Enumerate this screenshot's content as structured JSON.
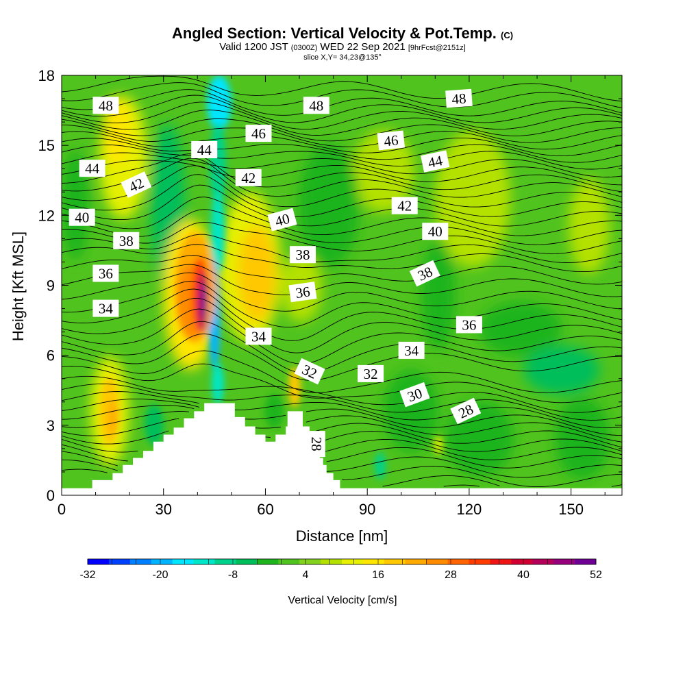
{
  "header": {
    "title": "Angled Section: Vertical Velocity & Pot.Temp.",
    "title_unit": "(C)",
    "valid_prefix": "Valid 1200 JST",
    "valid_utc": "(0300Z)",
    "valid_date": "WED 22 Sep 2021",
    "forecast": "[9hrFcst@2151z]",
    "slice": "slice X,Y= 34,23@135°"
  },
  "chart_data": {
    "type": "heatmap",
    "xlabel": "Distance [nm]",
    "ylabel": "Height [Kft MSL]",
    "xlim": [
      0,
      165
    ],
    "ylim": [
      0,
      18
    ],
    "xticks": [
      0,
      30,
      60,
      90,
      120,
      150
    ],
    "yticks": [
      0,
      3,
      6,
      9,
      12,
      15,
      18
    ],
    "colorbar": {
      "label": "Vertical Velocity [cm/s]",
      "min": -32,
      "max": 52,
      "step": 4,
      "tick_labels": [
        -32,
        -20,
        -8,
        4,
        16,
        28,
        40,
        52
      ],
      "colors": [
        "#0000ff",
        "#0040ff",
        "#0080ff",
        "#00b4ff",
        "#00e6ff",
        "#00e6c8",
        "#00d28c",
        "#00be5a",
        "#1eb41e",
        "#50c31e",
        "#82d21e",
        "#b4e100",
        "#e6f000",
        "#ffe600",
        "#ffc800",
        "#ffaa00",
        "#ff8c00",
        "#ff6400",
        "#ff3c00",
        "#f01414",
        "#d20032",
        "#b4005a",
        "#96007d",
        "#6e0096"
      ]
    },
    "terrain_kft": [
      [
        0,
        0.3
      ],
      [
        9,
        0.3
      ],
      [
        9,
        0.65
      ],
      [
        15,
        0.65
      ],
      [
        15,
        0.95
      ],
      [
        18,
        0.95
      ],
      [
        18,
        1.3
      ],
      [
        21,
        1.3
      ],
      [
        21,
        1.6
      ],
      [
        24,
        1.6
      ],
      [
        24,
        1.9
      ],
      [
        27,
        1.9
      ],
      [
        27,
        2.3
      ],
      [
        30,
        2.3
      ],
      [
        30,
        2.6
      ],
      [
        33,
        2.6
      ],
      [
        33,
        2.9
      ],
      [
        36,
        2.9
      ],
      [
        36,
        3.3
      ],
      [
        39,
        3.3
      ],
      [
        39,
        3.6
      ],
      [
        42,
        3.6
      ],
      [
        42,
        3.95
      ],
      [
        51,
        3.95
      ],
      [
        51,
        3.35
      ],
      [
        54,
        3.35
      ],
      [
        54,
        2.95
      ],
      [
        57,
        2.95
      ],
      [
        57,
        2.6
      ],
      [
        60,
        2.6
      ],
      [
        60,
        2.3
      ],
      [
        63,
        2.3
      ],
      [
        63,
        2.6
      ],
      [
        66,
        2.6
      ],
      [
        66,
        2.95
      ],
      [
        66.5,
        2.95
      ],
      [
        66.5,
        3.6
      ],
      [
        71,
        3.6
      ],
      [
        71,
        2.95
      ],
      [
        73,
        2.95
      ],
      [
        73,
        2.6
      ],
      [
        74,
        2.6
      ],
      [
        74,
        2.3
      ],
      [
        75,
        2.3
      ],
      [
        75,
        1.95
      ],
      [
        76,
        1.95
      ],
      [
        76,
        1.6
      ],
      [
        77,
        1.6
      ],
      [
        77,
        1.3
      ],
      [
        78,
        1.3
      ],
      [
        78,
        0.95
      ],
      [
        80,
        0.95
      ],
      [
        80,
        0.65
      ],
      [
        82,
        0.65
      ],
      [
        82,
        0.3
      ],
      [
        165,
        0.3
      ]
    ],
    "isentropes_C": [
      28,
      30,
      32,
      34,
      36,
      38,
      40,
      42,
      44,
      46,
      48
    ],
    "contour_labels": [
      {
        "text": "48",
        "x": 13,
        "y": 16.7,
        "angle": 0
      },
      {
        "text": "48",
        "x": 75,
        "y": 16.7,
        "angle": 0
      },
      {
        "text": "48",
        "x": 117,
        "y": 17.0,
        "angle": -4
      },
      {
        "text": "46",
        "x": 58,
        "y": 15.5,
        "angle": 0
      },
      {
        "text": "46",
        "x": 97,
        "y": 15.2,
        "angle": -6
      },
      {
        "text": "44",
        "x": 42,
        "y": 14.8,
        "angle": 0
      },
      {
        "text": "44",
        "x": 9,
        "y": 14.0,
        "angle": 0
      },
      {
        "text": "44",
        "x": 110,
        "y": 14.3,
        "angle": -12
      },
      {
        "text": "42",
        "x": 22,
        "y": 13.3,
        "angle": -25
      },
      {
        "text": "42",
        "x": 55,
        "y": 13.6,
        "angle": 0
      },
      {
        "text": "42",
        "x": 101,
        "y": 12.4,
        "angle": 0
      },
      {
        "text": "40",
        "x": 6,
        "y": 11.9,
        "angle": 0
      },
      {
        "text": "40",
        "x": 65,
        "y": 11.8,
        "angle": -15
      },
      {
        "text": "40",
        "x": 110,
        "y": 11.3,
        "angle": 0
      },
      {
        "text": "38",
        "x": 19,
        "y": 10.9,
        "angle": 0
      },
      {
        "text": "38",
        "x": 71,
        "y": 10.3,
        "angle": 0
      },
      {
        "text": "38",
        "x": 107,
        "y": 9.5,
        "angle": -25
      },
      {
        "text": "36",
        "x": 13,
        "y": 9.5,
        "angle": 0
      },
      {
        "text": "36",
        "x": 71,
        "y": 8.7,
        "angle": -8
      },
      {
        "text": "36",
        "x": 120,
        "y": 7.3,
        "angle": 0
      },
      {
        "text": "34",
        "x": 13,
        "y": 8.0,
        "angle": 0
      },
      {
        "text": "34",
        "x": 58,
        "y": 6.8,
        "angle": 0
      },
      {
        "text": "34",
        "x": 103,
        "y": 6.2,
        "angle": 0
      },
      {
        "text": "32",
        "x": 73,
        "y": 5.3,
        "angle": 25
      },
      {
        "text": "32",
        "x": 91,
        "y": 5.2,
        "angle": 0
      },
      {
        "text": "30",
        "x": 104,
        "y": 4.3,
        "angle": -20
      },
      {
        "text": "28",
        "x": 119,
        "y": 3.6,
        "angle": -25
      },
      {
        "text": "28",
        "x": 75,
        "y": 2.2,
        "angle": 90
      }
    ]
  }
}
